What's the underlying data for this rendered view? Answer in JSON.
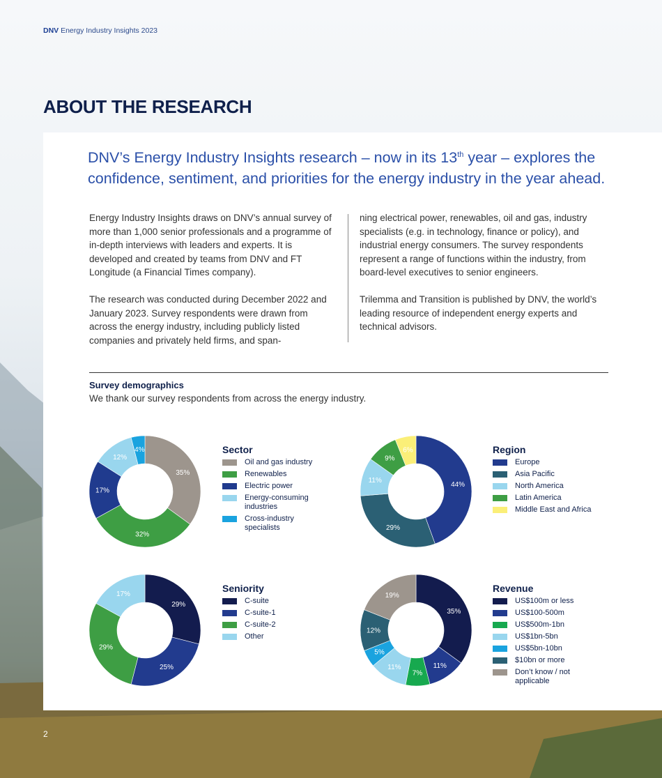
{
  "header": {
    "brand": "DNV",
    "publication": "Energy Industry Insights 2023"
  },
  "page_heading": "ABOUT THE RESEARCH",
  "lead": {
    "before_sup": "DNV’s Energy Industry Insights research – now in its 13",
    "sup": "th",
    "after_sup": " year – explores the confidence, sentiment, and priorities for the energy industry in the year ahead."
  },
  "body": {
    "col1_p1": "Energy Industry Insights draws on DNV’s annual survey of more than 1,000 senior professionals and a programme of in-depth interviews with leaders and experts. It is developed and created by teams from DNV and FT Longitude (a Financial Times company).",
    "col1_p2": "The research was conducted during December 2022 and January 2023. Survey respondents were drawn from across the energy industry, including publicly listed companies and privately held firms, and span-",
    "col2_p1": "ning electrical power, renewables, oil and gas, industry specialists (e.g. in technology, finance or policy), and industrial energy consumers. The survey respondents represent a range of functions within the industry, from board-level executives to senior engineers.",
    "col2_p2": "Trilemma and Transition is published by DNV, the world’s leading resource of independent energy experts and technical advisors."
  },
  "demographics": {
    "title": "Survey demographics",
    "subtitle": "We thank our survey respondents from across the energy industry."
  },
  "page_number": "2",
  "chart_data": [
    {
      "type": "pie",
      "title": "Sector",
      "slices": [
        {
          "label": "Oil and gas industry",
          "value": 35,
          "text": "35%",
          "color": "#9d958d"
        },
        {
          "label": "Renewables",
          "value": 32,
          "text": "32%",
          "color": "#3e9e44"
        },
        {
          "label": "Electric power",
          "value": 17,
          "text": "17%",
          "color": "#203b8e"
        },
        {
          "label": "Energy-consuming industries",
          "value": 12,
          "text": "12%",
          "color": "#99d6ee"
        },
        {
          "label": "Cross-industry specialists",
          "value": 4,
          "text": "4%",
          "color": "#1aa3df"
        }
      ]
    },
    {
      "type": "pie",
      "title": "Region",
      "slices": [
        {
          "label": "Europe",
          "value": 44,
          "text": "44%",
          "color": "#223b8e"
        },
        {
          "label": "Asia Pacific",
          "value": 29,
          "text": "29%",
          "color": "#2b6074"
        },
        {
          "label": "North America",
          "value": 11,
          "text": "11%",
          "color": "#99d6ee"
        },
        {
          "label": "Latin America",
          "value": 9,
          "text": "9%",
          "color": "#3e9e44"
        },
        {
          "label": "Middle East and Africa",
          "value": 6,
          "text": "6%",
          "color": "#fbef78"
        }
      ]
    },
    {
      "type": "pie",
      "title": "Seniority",
      "slices": [
        {
          "label": "C-suite",
          "value": 29,
          "text": "29%",
          "color": "#131c4e"
        },
        {
          "label": "C-suite-1",
          "value": 25,
          "text": "25%",
          "color": "#223b8e"
        },
        {
          "label": "C-suite-2",
          "value": 29,
          "text": "29%",
          "color": "#3e9e44"
        },
        {
          "label": "Other",
          "value": 17,
          "text": "17%",
          "color": "#99d6ee"
        }
      ]
    },
    {
      "type": "pie",
      "title": "Revenue",
      "slices": [
        {
          "label": "US$100m or less",
          "value": 35,
          "text": "35%",
          "color": "#131c4e"
        },
        {
          "label": "US$100-500m",
          "value": 11,
          "text": "11%",
          "color": "#223b8e"
        },
        {
          "label": "US$500m-1bn",
          "value": 7,
          "text": "7%",
          "color": "#17a94f"
        },
        {
          "label": "US$1bn-5bn",
          "value": 11,
          "text": "11%",
          "color": "#99d6ee"
        },
        {
          "label": "US$5bn-10bn",
          "value": 5,
          "text": "5%",
          "color": "#1aa3df"
        },
        {
          "label": "$10bn or more",
          "value": 12,
          "text": "12%",
          "color": "#2b6074"
        },
        {
          "label": "Don’t know / not applicable",
          "value": 19,
          "text": "19%",
          "color": "#9d958d"
        }
      ]
    }
  ]
}
